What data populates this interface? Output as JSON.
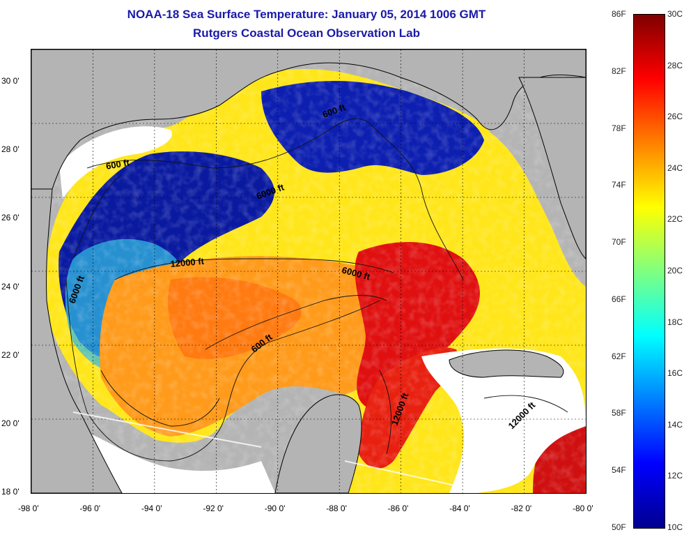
{
  "title": {
    "line1": "NOAA-18 Sea Surface Temperature:  January 05, 2014 1006 GMT",
    "line2": "Rutgers Coastal Ocean Observation Lab"
  },
  "axes": {
    "x_labels": [
      "-98 0'",
      "-96 0'",
      "-94 0'",
      "-92 0'",
      "-90 0'",
      "-88 0'",
      "-86 0'",
      "-84 0'",
      "-82 0'",
      "-80 0'"
    ],
    "y_labels": [
      "30 0'",
      "28 0'",
      "26 0'",
      "24 0'",
      "22 0'",
      "20 0'",
      "18 0'"
    ]
  },
  "contour_labels": [
    "600 ft",
    "600 ft",
    "6000 ft",
    "12000 ft",
    "6000 ft",
    "6000 ft",
    "600 ft",
    "12000 ft",
    "12000 ft"
  ],
  "colorbar": {
    "fahrenheit": [
      "86F",
      "82F",
      "78F",
      "74F",
      "70F",
      "66F",
      "62F",
      "58F",
      "54F",
      "50F"
    ],
    "celsius": [
      "30C",
      "28C",
      "26C",
      "24C",
      "22C",
      "20C",
      "18C",
      "16C",
      "14C",
      "12C",
      "10C"
    ],
    "colors": [
      "#7f0000",
      "#ff0000",
      "#ff8000",
      "#ffff00",
      "#80ff80",
      "#00ffff",
      "#0080ff",
      "#0000ff",
      "#00008f"
    ]
  }
}
